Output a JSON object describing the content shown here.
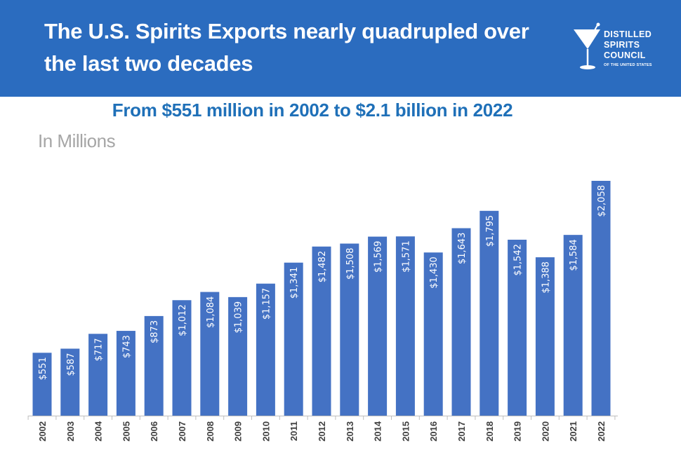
{
  "header": {
    "title": "The U.S. Spirits Exports nearly quadrupled over the last two decades",
    "logo_lines": [
      "DISTILLED",
      "SPIRITS",
      "COUNCIL"
    ],
    "logo_subline": "OF THE UNITED STATES"
  },
  "colors": {
    "header_bg": "#2b6cbf",
    "bar": "#4472c4",
    "subtitle": "#1f70b8",
    "units": "#a6a6a6"
  },
  "chart_data": {
    "type": "bar",
    "title": "From $551 million in 2002 to $2.1 billion in 2022",
    "ylabel": "In Millions",
    "xlabel": "",
    "categories": [
      "2002",
      "2003",
      "2004",
      "2005",
      "2006",
      "2007",
      "2008",
      "2009",
      "2010",
      "2011",
      "2012",
      "2013",
      "2014",
      "2015",
      "2016",
      "2017",
      "2018",
      "2019",
      "2020",
      "2021",
      "2022"
    ],
    "values": [
      551,
      587,
      717,
      743,
      873,
      1012,
      1084,
      1039,
      1157,
      1341,
      1482,
      1508,
      1569,
      1571,
      1430,
      1643,
      1795,
      1542,
      1388,
      1584,
      2058
    ],
    "data_labels": [
      "$551",
      "$587",
      "$717",
      "$743",
      "$873",
      "$1,012",
      "$1,084",
      "$1,039",
      "$1,157",
      "$1,341",
      "$1,482",
      "$1,508",
      "$1,569",
      "$1,571",
      "$1,430",
      "$1,643",
      "$1,795",
      "$1,542",
      "$1,388",
      "$1,584",
      "$2,058"
    ],
    "ylim": [
      0,
      2058
    ],
    "grid": false,
    "legend": "none"
  }
}
